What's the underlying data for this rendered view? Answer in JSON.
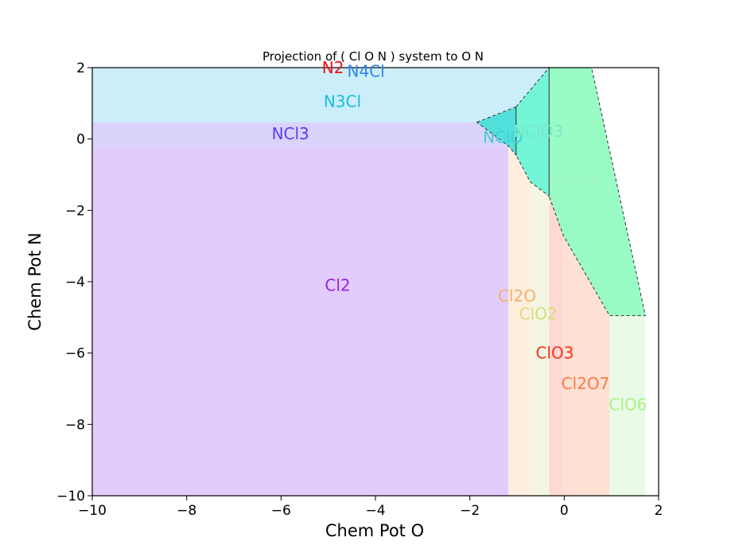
{
  "chart_data": {
    "type": "area",
    "title": "Projection of ( Cl O N ) system to O N",
    "xlabel": "Chem Pot O",
    "ylabel": "Chem Pot N",
    "xlim": [
      -10,
      2
    ],
    "ylim": [
      -10,
      2
    ],
    "xticks": [
      -10,
      -8,
      -6,
      -4,
      -2,
      0,
      2
    ],
    "yticks": [
      -10,
      -8,
      -6,
      -4,
      -2,
      0,
      2
    ],
    "regions": [
      {
        "name": "Cl2",
        "color": "#e2ccfd",
        "points": [
          [
            -10,
            -10
          ],
          [
            -1.18,
            -10
          ],
          [
            -1.18,
            -0.2
          ],
          [
            -10,
            -0.2
          ]
        ]
      },
      {
        "name": "NCl3",
        "color": "#d9d3fb",
        "points": [
          [
            -10,
            -0.2
          ],
          [
            -1.18,
            -0.2
          ],
          [
            -1.18,
            0.47
          ],
          [
            -10,
            0.47
          ]
        ]
      },
      {
        "name": "N3Cl",
        "color": "#cbeefa",
        "points": [
          [
            -10,
            0.47
          ],
          [
            -1.85,
            0.47
          ],
          [
            -1.02,
            0.9
          ],
          [
            -0.32,
            2
          ],
          [
            -10,
            2
          ]
        ]
      },
      {
        "name": "Cl2O",
        "color": "#ffeedd",
        "points": [
          [
            -1.18,
            -10
          ],
          [
            -0.72,
            -10
          ],
          [
            -0.72,
            -1.2
          ],
          [
            -1.0,
            -0.45
          ],
          [
            -1.18,
            -0.2
          ]
        ]
      },
      {
        "name": "ClO2",
        "color": "#f3f6e2",
        "points": [
          [
            -0.72,
            -10
          ],
          [
            -0.32,
            -10
          ],
          [
            -0.32,
            -1.6
          ],
          [
            -0.72,
            -1.2
          ]
        ]
      },
      {
        "name": "ClO3",
        "color": "#fed8d2",
        "points": [
          [
            -0.32,
            -10
          ],
          [
            -0.02,
            -10
          ],
          [
            -0.02,
            -2.7
          ],
          [
            -0.32,
            -1.6
          ]
        ]
      },
      {
        "name": "Cl2O7",
        "color": "#fee0d4",
        "points": [
          [
            -0.02,
            -10
          ],
          [
            0.96,
            -10
          ],
          [
            0.96,
            -4.95
          ],
          [
            -0.02,
            -2.7
          ]
        ]
      },
      {
        "name": "ClO6",
        "color": "#e9fbe6",
        "points": [
          [
            0.96,
            -10
          ],
          [
            1.72,
            -10
          ],
          [
            1.72,
            -4.95
          ],
          [
            0.96,
            -4.95
          ]
        ]
      },
      {
        "name": "NClO",
        "color": "#52e0dc",
        "points": [
          [
            -1.85,
            0.47
          ],
          [
            -1.02,
            0.9
          ],
          [
            -1.02,
            -0.45
          ],
          [
            -1.18,
            -0.2
          ]
        ]
      },
      {
        "name": "NClO3",
        "color": "#75f5d8",
        "points": [
          [
            -1.02,
            0.9
          ],
          [
            -0.32,
            2
          ],
          [
            -0.32,
            -1.6
          ],
          [
            -0.72,
            -1.2
          ],
          [
            -1.02,
            -0.45
          ]
        ]
      },
      {
        "name": "NClO6",
        "color": "#99fcc5",
        "points": [
          [
            -0.32,
            2
          ],
          [
            0.58,
            2
          ],
          [
            1.72,
            -4.95
          ],
          [
            0.96,
            -4.95
          ],
          [
            -0.02,
            -2.7
          ],
          [
            -0.32,
            -1.6
          ]
        ]
      }
    ],
    "labels": [
      {
        "text": "N2",
        "x": -4.9,
        "y": 2.0,
        "color": "#ee1111"
      },
      {
        "text": "N4Cl",
        "x": -4.2,
        "y": 1.9,
        "color": "#2e86e8"
      },
      {
        "text": "N3Cl",
        "x": -4.7,
        "y": 1.05,
        "color": "#18bde0"
      },
      {
        "text": "NCl3",
        "x": -5.8,
        "y": 0.15,
        "color": "#5b3ef0"
      },
      {
        "text": "NClO",
        "x": -1.3,
        "y": 0.05,
        "color": "#3fd2d8"
      },
      {
        "text": "NClO3",
        "x": -0.55,
        "y": 0.22,
        "color": "#78e8c8"
      },
      {
        "text": "NClO6",
        "x": 0.25,
        "y": -1.2,
        "color": "#a2f5c3"
      },
      {
        "text": "Cl2",
        "x": -4.8,
        "y": -4.1,
        "color": "#9a1fe8"
      },
      {
        "text": "Cl2O",
        "x": -1.0,
        "y": -4.4,
        "color": "#f2b26c"
      },
      {
        "text": "ClO2",
        "x": -0.55,
        "y": -4.9,
        "color": "#d3e07e"
      },
      {
        "text": "ClO3",
        "x": -0.2,
        "y": -6.0,
        "color": "#f5311a"
      },
      {
        "text": "Cl2O7",
        "x": 0.45,
        "y": -6.85,
        "color": "#fb7c42"
      },
      {
        "text": "ClO6",
        "x": 1.35,
        "y": -7.45,
        "color": "#aef08a"
      }
    ]
  }
}
